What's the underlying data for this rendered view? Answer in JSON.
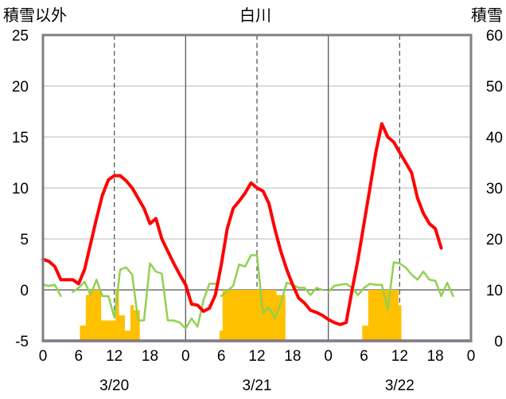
{
  "chart_data": {
    "type": "bar+line",
    "title": "白川",
    "ylabel_left": "積雪以外",
    "ylabel_right": "積雪",
    "ylim_left": [
      -5,
      25
    ],
    "yticks_left": [
      "-5",
      "0",
      "5",
      "10",
      "15",
      "20",
      "25"
    ],
    "ylim_right": [
      0,
      60
    ],
    "yticks_right": [
      "0",
      "10",
      "20",
      "30",
      "40",
      "50",
      "60"
    ],
    "xlim_hours": [
      0,
      72
    ],
    "xtick_labels": [
      "0",
      "6",
      "12",
      "18",
      "0",
      "6",
      "12",
      "18",
      "0",
      "6",
      "12",
      "18",
      "0"
    ],
    "day_labels": [
      "3/20",
      "3/21",
      "3/22"
    ],
    "grid": "vertical lines at each day (solid) and at 12h (dashed); horizontal gridlines at each left tick",
    "colors": {
      "bar": "#ffc000",
      "red_line": "#ff0000",
      "green_line": "#92d050",
      "purple_line": "#7030a0",
      "frame": "#808080"
    },
    "bars": [
      {
        "x": 6.5,
        "v": 3
      },
      {
        "x": 7,
        "v": 3
      },
      {
        "x": 7.5,
        "v": 9
      },
      {
        "x": 8,
        "v": 10
      },
      {
        "x": 8.5,
        "v": 10
      },
      {
        "x": 9,
        "v": 10
      },
      {
        "x": 9.5,
        "v": 10
      },
      {
        "x": 10,
        "v": 4
      },
      {
        "x": 10.5,
        "v": 4
      },
      {
        "x": 11,
        "v": 4
      },
      {
        "x": 11.5,
        "v": 4
      },
      {
        "x": 12,
        "v": 4
      },
      {
        "x": 12.5,
        "v": 10
      },
      {
        "x": 13,
        "v": 5
      },
      {
        "x": 13.5,
        "v": 5
      },
      {
        "x": 14,
        "v": 2
      },
      {
        "x": 14.5,
        "v": 2
      },
      {
        "x": 15,
        "v": 7
      },
      {
        "x": 15.5,
        "v": 6
      },
      {
        "x": 16,
        "v": 6
      },
      {
        "x": 30,
        "v": 2
      },
      {
        "x": 30.5,
        "v": 10
      },
      {
        "x": 31,
        "v": 10
      },
      {
        "x": 31.5,
        "v": 10
      },
      {
        "x": 32,
        "v": 10
      },
      {
        "x": 32.5,
        "v": 10
      },
      {
        "x": 33,
        "v": 10
      },
      {
        "x": 33.5,
        "v": 10
      },
      {
        "x": 34,
        "v": 10
      },
      {
        "x": 34.5,
        "v": 10
      },
      {
        "x": 35,
        "v": 10
      },
      {
        "x": 35.5,
        "v": 10
      },
      {
        "x": 36,
        "v": 10
      },
      {
        "x": 36.5,
        "v": 10
      },
      {
        "x": 37,
        "v": 10
      },
      {
        "x": 37.5,
        "v": 10
      },
      {
        "x": 38,
        "v": 10
      },
      {
        "x": 38.5,
        "v": 10
      },
      {
        "x": 39,
        "v": 10
      },
      {
        "x": 39.5,
        "v": 9
      },
      {
        "x": 40,
        "v": 9
      },
      {
        "x": 40.5,
        "v": 9
      },
      {
        "x": 54,
        "v": 3
      },
      {
        "x": 54.5,
        "v": 3
      },
      {
        "x": 55,
        "v": 10
      },
      {
        "x": 55.5,
        "v": 10
      },
      {
        "x": 56,
        "v": 10
      },
      {
        "x": 56.5,
        "v": 10
      },
      {
        "x": 57,
        "v": 10
      },
      {
        "x": 57.5,
        "v": 10
      },
      {
        "x": 58,
        "v": 10
      },
      {
        "x": 58.5,
        "v": 10
      },
      {
        "x": 59,
        "v": 10
      },
      {
        "x": 59.5,
        "v": 10
      },
      {
        "x": 60,
        "v": 7
      }
    ],
    "red_series": [
      [
        0,
        3
      ],
      [
        1,
        2.8
      ],
      [
        2,
        2.3
      ],
      [
        3,
        1
      ],
      [
        4,
        1
      ],
      [
        5,
        1
      ],
      [
        6,
        0.6
      ],
      [
        7,
        2
      ],
      [
        8,
        4.5
      ],
      [
        9,
        7
      ],
      [
        10,
        9.3
      ],
      [
        11,
        10.8
      ],
      [
        12,
        11.2
      ],
      [
        13,
        11.2
      ],
      [
        14,
        10.7
      ],
      [
        15,
        10
      ],
      [
        16,
        9
      ],
      [
        17,
        8
      ],
      [
        18,
        6.5
      ],
      [
        19,
        7
      ],
      [
        20,
        5
      ],
      [
        21,
        3.8
      ],
      [
        22,
        2.6
      ],
      [
        23,
        1.5
      ],
      [
        24,
        0.5
      ],
      [
        25,
        -1.4
      ],
      [
        26,
        -1.5
      ],
      [
        27,
        -2.1
      ],
      [
        28,
        -1.8
      ],
      [
        29,
        -0.5
      ],
      [
        30,
        2.5
      ],
      [
        31,
        6
      ],
      [
        32,
        8
      ],
      [
        33,
        8.7
      ],
      [
        34,
        9.5
      ],
      [
        35,
        10.5
      ],
      [
        36,
        10
      ],
      [
        37,
        9.7
      ],
      [
        38,
        8.5
      ],
      [
        39,
        6
      ],
      [
        40,
        3.8
      ],
      [
        41,
        2
      ],
      [
        42,
        0.5
      ],
      [
        43,
        -0.8
      ],
      [
        44,
        -1.3
      ],
      [
        45,
        -2
      ],
      [
        46,
        -2.2
      ],
      [
        47,
        -2.5
      ],
      [
        48,
        -2.9
      ],
      [
        49,
        -3.2
      ],
      [
        50,
        -3.4
      ],
      [
        51,
        -3.2
      ],
      [
        52,
        0
      ],
      [
        53,
        3
      ],
      [
        54,
        6.5
      ],
      [
        55,
        10
      ],
      [
        56,
        13.5
      ],
      [
        57,
        16.3
      ],
      [
        58,
        15
      ],
      [
        59,
        14.5
      ],
      [
        60,
        13.5
      ],
      [
        61,
        12.5
      ],
      [
        62,
        11.5
      ],
      [
        63,
        9
      ],
      [
        64,
        7.5
      ],
      [
        65,
        6.5
      ],
      [
        66,
        6
      ],
      [
        67,
        4.1
      ]
    ],
    "green_series": [
      [
        0,
        0.5
      ],
      [
        1,
        0.4
      ],
      [
        2,
        0.5
      ],
      [
        3,
        -0.6
      ],
      null,
      [
        5,
        -0.2
      ],
      [
        6,
        0.2
      ],
      [
        7,
        0.8
      ],
      [
        8,
        -0.5
      ],
      [
        9,
        1
      ],
      [
        10,
        -0.6
      ],
      [
        11,
        -0.6
      ],
      [
        12,
        -2.7
      ],
      [
        13,
        2
      ],
      [
        14,
        2.2
      ],
      [
        15,
        1.5
      ],
      [
        16,
        -3
      ],
      [
        17,
        -3
      ],
      [
        18,
        2.6
      ],
      [
        19,
        1.8
      ],
      [
        20,
        1.6
      ],
      [
        21,
        -3
      ],
      [
        22,
        -3
      ],
      [
        23,
        -3.2
      ],
      [
        24,
        -3.8
      ],
      [
        25,
        -2.8
      ],
      [
        26,
        -3.6
      ],
      [
        27,
        -1
      ],
      [
        28,
        0.6
      ],
      [
        29,
        0.6
      ],
      null,
      [
        30,
        -0.6
      ],
      [
        31,
        -0.1
      ],
      [
        32,
        0.4
      ],
      [
        33,
        2.5
      ],
      [
        34,
        2.3
      ],
      [
        35,
        3.4
      ],
      [
        36,
        3.4
      ],
      [
        37,
        -2.3
      ],
      [
        38,
        -1.7
      ],
      [
        39,
        -2.8
      ],
      [
        40,
        -1.3
      ],
      [
        41,
        0.7
      ],
      [
        42,
        0.5
      ],
      [
        43,
        0.2
      ],
      [
        44,
        0.2
      ],
      [
        45,
        -0.5
      ],
      [
        46,
        0.2
      ],
      [
        47,
        0
      ],
      null,
      [
        48,
        -0.2
      ],
      [
        49,
        0.4
      ],
      [
        50,
        0.5
      ],
      [
        51,
        0.6
      ],
      [
        52,
        0.2
      ],
      [
        53,
        -0.5
      ],
      [
        54,
        0.2
      ],
      [
        55,
        0.6
      ],
      [
        56,
        0.5
      ],
      [
        57,
        0.5
      ],
      [
        58,
        -1.9
      ],
      [
        59,
        2.7
      ],
      [
        60,
        2.6
      ],
      [
        61,
        2.2
      ],
      [
        62,
        1.5
      ],
      [
        63,
        1
      ],
      [
        64,
        1.8
      ],
      [
        65,
        1
      ],
      [
        66,
        0.9
      ],
      [
        67,
        -0.6
      ],
      [
        68,
        0.7
      ],
      [
        69,
        -0.6
      ]
    ],
    "purple_series": [
      [
        0,
        -5
      ],
      [
        72,
        -5
      ]
    ]
  }
}
